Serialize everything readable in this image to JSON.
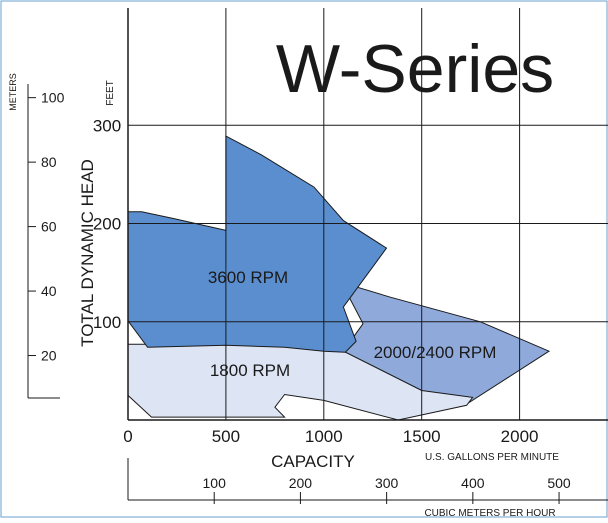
{
  "page": {
    "border_color": "#6aa0cf"
  },
  "chart_data": {
    "type": "area",
    "title": "W-Series",
    "ylabel": "TOTAL DYNAMIC HEAD",
    "xlabel": "CAPACITY",
    "x_unit_label": "U.S. GALLONS PER MINUTE",
    "x2_unit_label": "CUBIC METERS PER HOUR",
    "y_unit_label": "FEET",
    "y2_unit_label": "METERS",
    "xlim": [
      0,
      2400
    ],
    "ylim": [
      0,
      400
    ],
    "x_ticks": [
      0,
      500,
      1000,
      1500,
      2000
    ],
    "y_ticks": [
      100,
      200,
      300
    ],
    "x2_ticks": [
      100,
      200,
      300,
      400,
      500
    ],
    "y2_ticks": [
      20,
      40,
      60,
      80,
      100
    ],
    "grid": true,
    "series": [
      {
        "name": "2000/2400 RPM",
        "color": "#8fa9da",
        "points": [
          [
            1090,
            140
          ],
          [
            1200,
            98
          ],
          [
            1100,
            70
          ],
          [
            1650,
            15
          ],
          [
            1720,
            15
          ],
          [
            2150,
            70
          ],
          [
            1800,
            100
          ],
          [
            1340,
            125
          ]
        ]
      },
      {
        "name": "1800 RPM",
        "color": "#dde4f4",
        "points": [
          [
            0,
            77
          ],
          [
            0,
            25
          ],
          [
            120,
            3
          ],
          [
            800,
            3
          ],
          [
            750,
            13
          ],
          [
            800,
            26
          ],
          [
            1000,
            20
          ],
          [
            1380,
            0
          ],
          [
            1730,
            15
          ],
          [
            1760,
            23
          ],
          [
            1500,
            30
          ],
          [
            1100,
            70
          ],
          [
            650,
            77
          ]
        ]
      },
      {
        "name": "3600 RPM",
        "color": "#5b8ecf",
        "points": [
          [
            0,
            212
          ],
          [
            70,
            212
          ],
          [
            235,
            205
          ],
          [
            500,
            193
          ],
          [
            500,
            289
          ],
          [
            680,
            270
          ],
          [
            950,
            237
          ],
          [
            1100,
            203
          ],
          [
            1320,
            175
          ],
          [
            1100,
            115
          ],
          [
            1165,
            80
          ],
          [
            1110,
            69
          ],
          [
            1000,
            70
          ],
          [
            800,
            74
          ],
          [
            500,
            76
          ],
          [
            100,
            74
          ],
          [
            0,
            101
          ]
        ]
      }
    ]
  }
}
